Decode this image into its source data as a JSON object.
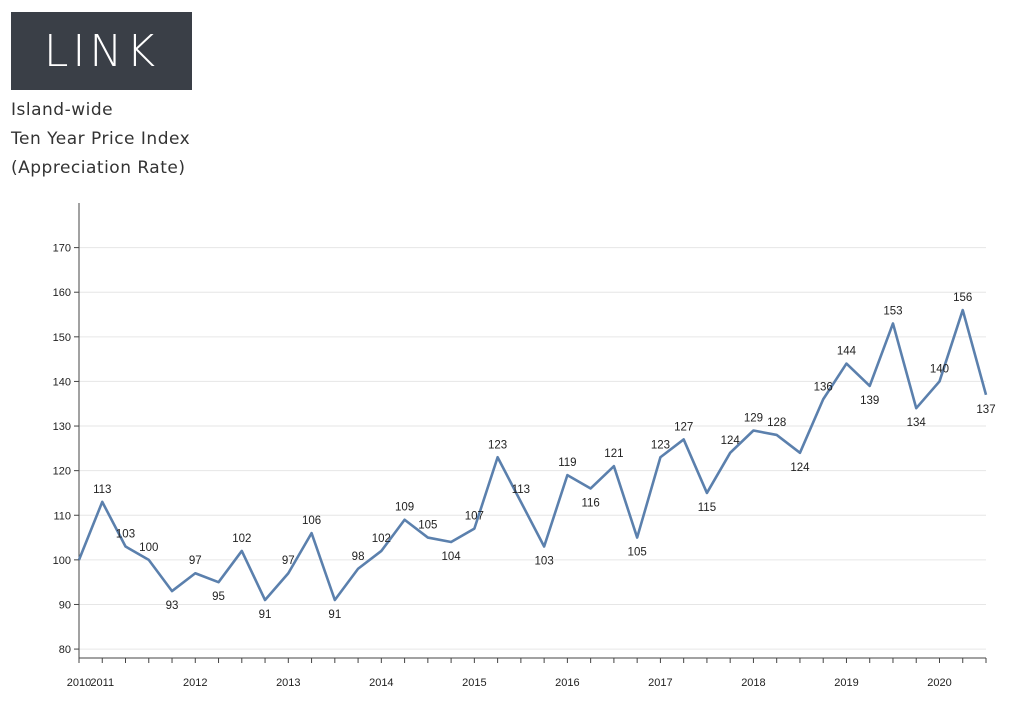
{
  "logo": {
    "text": "LINK"
  },
  "header": {
    "line1": "Island-wide",
    "line2": "Ten Year Price Index",
    "line3": "(Appreciation Rate)"
  },
  "chart_data": {
    "type": "line",
    "grid": true,
    "ylim": [
      78,
      180
    ],
    "yticks": [
      80,
      90,
      100,
      110,
      120,
      130,
      140,
      150,
      160,
      170
    ],
    "xtick_labels": [
      "2010",
      "2011",
      "2012",
      "2013",
      "2014",
      "2015",
      "2016",
      "2017",
      "2018",
      "2019",
      "2020"
    ],
    "xtick_index": [
      0,
      1,
      5,
      9,
      13,
      17,
      21,
      25,
      29,
      33,
      37
    ],
    "line_color": "#5b80ad",
    "series": [
      {
        "values": [
          100,
          113,
          103,
          100,
          93,
          97,
          95,
          102,
          91,
          97,
          106,
          91,
          98,
          102,
          109,
          105,
          104,
          107,
          123,
          113,
          103,
          119,
          116,
          121,
          105,
          123,
          127,
          115,
          124,
          129,
          128,
          124,
          136,
          144,
          139,
          153,
          134,
          140,
          156,
          137
        ],
        "labels": [
          "",
          "113",
          "103",
          "100",
          "93",
          "97",
          "95",
          "102",
          "91",
          "97",
          "106",
          "91",
          "98",
          "102",
          "109",
          "105",
          "104",
          "107",
          "123",
          "113",
          "103",
          "119",
          "116",
          "121",
          "105",
          "123",
          "127",
          "115",
          "124",
          "129",
          "128",
          "124",
          "136",
          "144",
          "139",
          "153",
          "134",
          "140",
          "156",
          "137"
        ]
      }
    ]
  }
}
